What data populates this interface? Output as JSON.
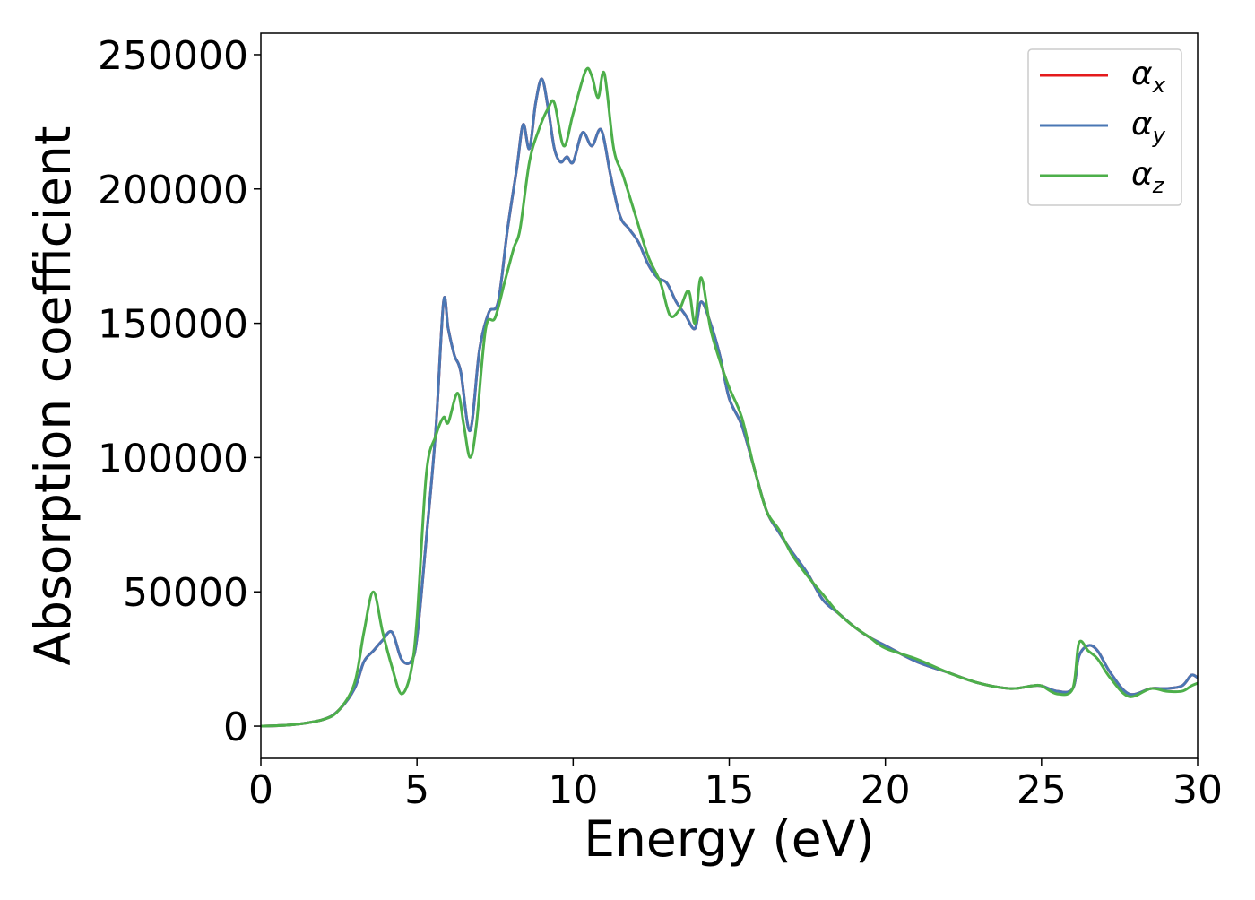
{
  "chart_data": {
    "type": "line",
    "title": "",
    "xlabel": "Energy (eV)",
    "ylabel": "Absorption coefficient",
    "xlim": [
      0,
      30
    ],
    "ylim": [
      -12000,
      258000
    ],
    "xticks": [
      0,
      5,
      10,
      15,
      20,
      25,
      30
    ],
    "xtick_labels": [
      "0",
      "5",
      "10",
      "15",
      "20",
      "25",
      "30"
    ],
    "yticks": [
      0,
      50000,
      100000,
      150000,
      200000,
      250000
    ],
    "ytick_labels": [
      "0",
      "50000",
      "100000",
      "150000",
      "200000",
      "250000"
    ],
    "grid": false,
    "legend_position": "top-right",
    "series": [
      {
        "name": "α_x",
        "name_base": "α",
        "name_sub": "x",
        "color": "#e41a1c",
        "x": [
          0,
          1,
          2,
          2.5,
          3,
          3.3,
          3.6,
          3.9,
          4.2,
          4.5,
          4.8,
          5.0,
          5.3,
          5.6,
          5.85,
          6.0,
          6.2,
          6.4,
          6.7,
          7.0,
          7.3,
          7.6,
          7.9,
          8.2,
          8.4,
          8.6,
          8.8,
          9.0,
          9.2,
          9.4,
          9.6,
          9.8,
          10.0,
          10.3,
          10.6,
          10.9,
          11.2,
          11.5,
          11.8,
          12.1,
          12.4,
          12.7,
          13.0,
          13.3,
          13.6,
          13.9,
          14.1,
          14.4,
          14.7,
          15.0,
          15.4,
          15.8,
          16.2,
          16.6,
          17.0,
          17.5,
          18.0,
          18.5,
          19.0,
          19.5,
          20.0,
          21.0,
          22.0,
          23.0,
          24.0,
          24.7,
          25.0,
          25.5,
          26.0,
          26.2,
          26.5,
          26.8,
          27.2,
          27.8,
          28.5,
          29.0,
          29.5,
          29.8,
          30.0
        ],
        "y": [
          0,
          500,
          2500,
          6000,
          14000,
          24000,
          28000,
          32000,
          35000,
          25000,
          24000,
          33000,
          70000,
          110000,
          158000,
          148000,
          138000,
          132000,
          110000,
          140000,
          154000,
          158000,
          185000,
          208000,
          224000,
          215000,
          232000,
          241000,
          230000,
          215000,
          210000,
          212000,
          210000,
          221000,
          216000,
          222000,
          205000,
          190000,
          185000,
          180000,
          172000,
          167000,
          165000,
          158000,
          153000,
          148000,
          158000,
          150000,
          138000,
          122000,
          112000,
          96000,
          80000,
          72000,
          65000,
          57000,
          47000,
          42000,
          37000,
          33000,
          30000,
          24000,
          20000,
          16000,
          14000,
          15000,
          15000,
          13000,
          14000,
          26000,
          30000,
          28000,
          20000,
          12000,
          14000,
          14000,
          15000,
          19000,
          18000
        ]
      },
      {
        "name": "α_y",
        "name_base": "α",
        "name_sub": "y",
        "color": "#4a77b4",
        "x": [
          0,
          1,
          2,
          2.5,
          3,
          3.3,
          3.6,
          3.9,
          4.2,
          4.5,
          4.8,
          5.0,
          5.3,
          5.6,
          5.85,
          6.0,
          6.2,
          6.4,
          6.7,
          7.0,
          7.3,
          7.6,
          7.9,
          8.2,
          8.4,
          8.6,
          8.8,
          9.0,
          9.2,
          9.4,
          9.6,
          9.8,
          10.0,
          10.3,
          10.6,
          10.9,
          11.2,
          11.5,
          11.8,
          12.1,
          12.4,
          12.7,
          13.0,
          13.3,
          13.6,
          13.9,
          14.1,
          14.4,
          14.7,
          15.0,
          15.4,
          15.8,
          16.2,
          16.6,
          17.0,
          17.5,
          18.0,
          18.5,
          19.0,
          19.5,
          20.0,
          21.0,
          22.0,
          23.0,
          24.0,
          24.7,
          25.0,
          25.5,
          26.0,
          26.2,
          26.5,
          26.8,
          27.2,
          27.8,
          28.5,
          29.0,
          29.5,
          29.8,
          30.0
        ],
        "y": [
          0,
          500,
          2500,
          6000,
          14000,
          24000,
          28000,
          32000,
          35000,
          25000,
          24000,
          33000,
          70000,
          110000,
          158000,
          148000,
          138000,
          132000,
          110000,
          140000,
          154000,
          158000,
          185000,
          208000,
          224000,
          215000,
          232000,
          241000,
          230000,
          215000,
          210000,
          212000,
          210000,
          221000,
          216000,
          222000,
          205000,
          190000,
          185000,
          180000,
          172000,
          167000,
          165000,
          158000,
          153000,
          148000,
          158000,
          150000,
          138000,
          122000,
          112000,
          96000,
          80000,
          72000,
          65000,
          57000,
          47000,
          42000,
          37000,
          33000,
          30000,
          24000,
          20000,
          16000,
          14000,
          15000,
          15000,
          13000,
          14000,
          26000,
          30000,
          28000,
          20000,
          12000,
          14000,
          14000,
          15000,
          19000,
          18000
        ]
      },
      {
        "name": "α_z",
        "name_base": "α",
        "name_sub": "z",
        "color": "#4daf4a",
        "x": [
          0,
          1,
          2,
          2.5,
          3,
          3.3,
          3.6,
          3.9,
          4.2,
          4.5,
          4.8,
          5.0,
          5.3,
          5.6,
          5.85,
          6.0,
          6.3,
          6.5,
          6.7,
          6.9,
          7.2,
          7.5,
          7.8,
          8.1,
          8.3,
          8.6,
          8.9,
          9.2,
          9.4,
          9.7,
          10.0,
          10.4,
          10.6,
          10.8,
          11.0,
          11.3,
          11.6,
          12.0,
          12.4,
          12.8,
          13.1,
          13.4,
          13.7,
          13.9,
          14.1,
          14.4,
          14.7,
          15.0,
          15.4,
          15.8,
          16.2,
          16.6,
          17.0,
          17.5,
          18.0,
          18.5,
          19.0,
          19.5,
          20.0,
          21.0,
          22.0,
          23.0,
          24.0,
          24.7,
          25.0,
          25.5,
          26.0,
          26.2,
          26.5,
          26.8,
          27.2,
          27.8,
          28.5,
          29.0,
          29.5,
          29.8,
          30.0
        ],
        "y": [
          0,
          500,
          2500,
          6000,
          16000,
          35000,
          50000,
          35000,
          22000,
          12000,
          20000,
          40000,
          94000,
          108000,
          115000,
          113000,
          124000,
          112000,
          100000,
          112000,
          148000,
          152000,
          165000,
          178000,
          185000,
          210000,
          222000,
          230000,
          232000,
          216000,
          228000,
          244000,
          242000,
          234000,
          243000,
          215000,
          205000,
          190000,
          175000,
          165000,
          153000,
          155000,
          162000,
          150000,
          167000,
          148000,
          136000,
          126000,
          115000,
          96000,
          80000,
          73000,
          64000,
          56000,
          49000,
          42000,
          37000,
          33000,
          29000,
          25000,
          20000,
          16000,
          14000,
          15000,
          15000,
          12000,
          14000,
          31000,
          28000,
          25000,
          18000,
          11000,
          14000,
          13000,
          13000,
          15000,
          16000
        ]
      }
    ]
  }
}
